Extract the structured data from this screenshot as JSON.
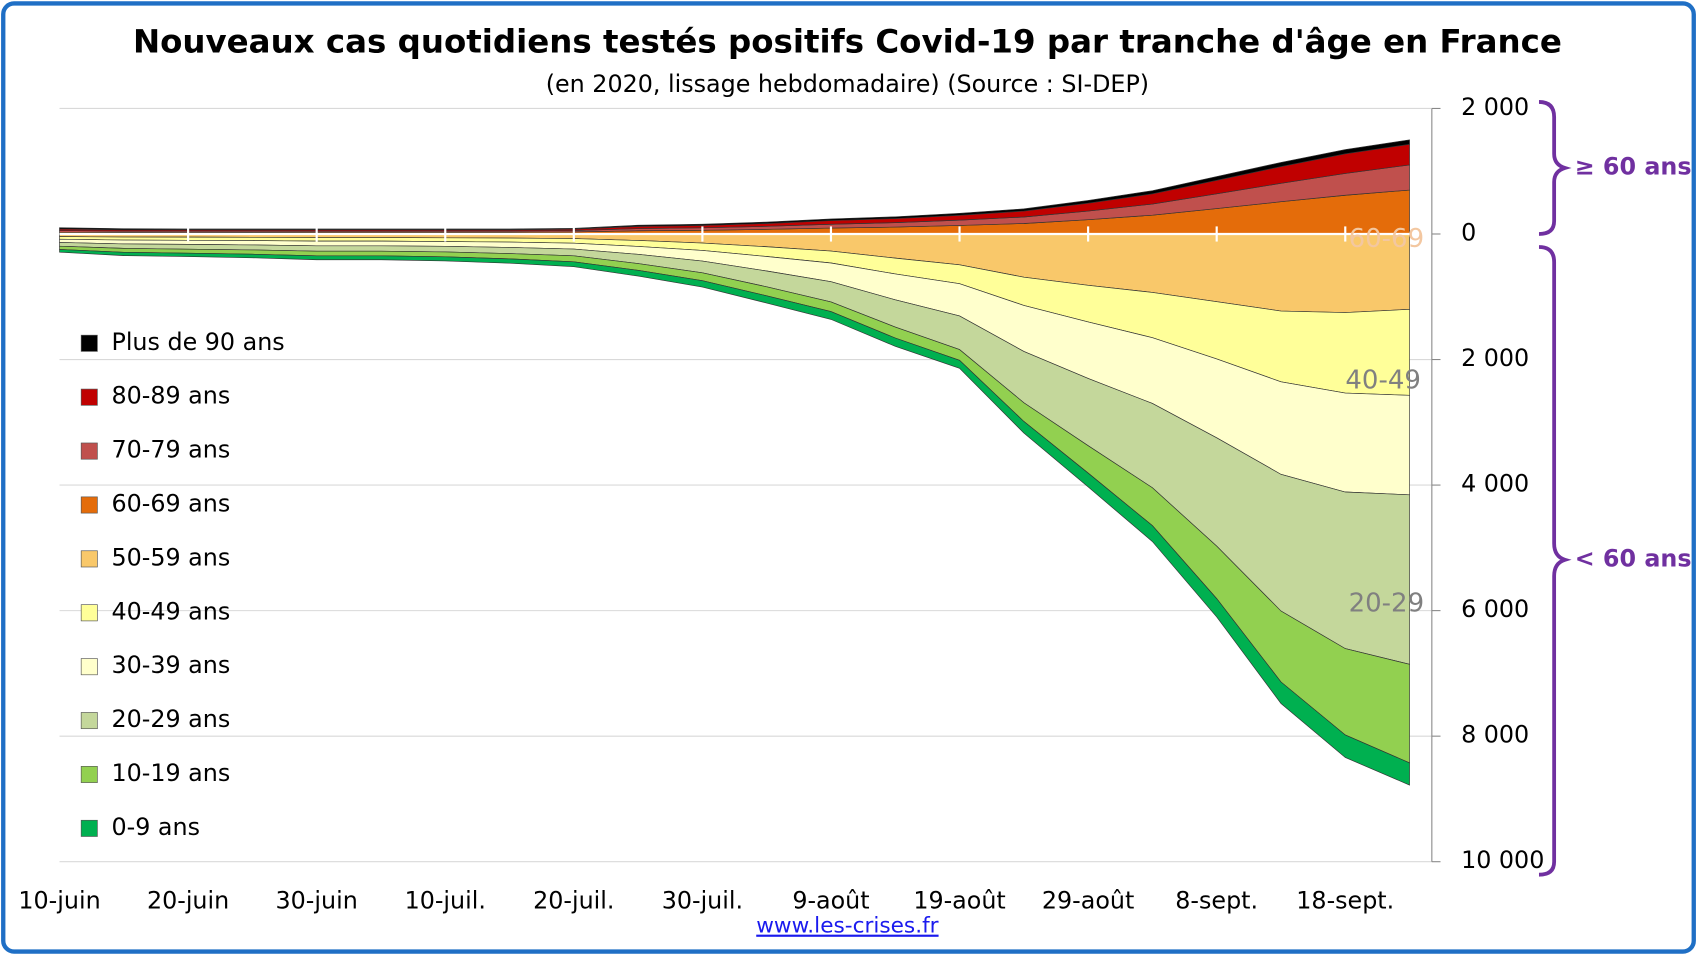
{
  "chart_data": {
    "type": "butterfly-stacked-area",
    "title": "Nouveaux cas quotidiens testés positifs Covid-19 par tranche d'âge en France",
    "subtitle": "(en 2020, lissage hebdomadaire) (Source : SI-DEP)",
    "source": "www.les-crises.fr",
    "categories": [
      "10-juin",
      null,
      "20-juin",
      null,
      "30-juin",
      null,
      "10-juil.",
      null,
      "20-juil.",
      null,
      "30-juil.",
      null,
      "9-août",
      null,
      "19-août",
      null,
      "29-août",
      null,
      "8-sept.",
      null,
      "18-sept.",
      null
    ],
    "ylim": [
      0,
      2000
    ],
    "yticks": [
      0,
      {
        "value": 2000,
        "label": "2 000"
      }
    ],
    "y2lim": [
      0,
      10000
    ],
    "y2ticks": [
      {
        "value": 2000,
        "label": "2 000"
      },
      {
        "value": 4000,
        "label": "4 000"
      },
      {
        "value": 6000,
        "label": "6 000"
      },
      {
        "value": 8000,
        "label": "8 000"
      },
      {
        "value": 10000,
        "label": "10 000"
      }
    ],
    "grid": true,
    "legend": "left",
    "series": [
      {
        "name": "Plus de 90 ans",
        "color": "#000000",
        "axis": "y",
        "values": [
          20,
          17,
          15,
          14,
          13,
          13,
          12,
          12,
          12,
          19,
          19,
          22,
          26,
          28,
          31,
          35,
          43,
          50,
          60,
          66,
          68,
          70
        ]
      },
      {
        "name": "80-89 ans",
        "color": "#c00000",
        "axis": "y",
        "values": [
          25,
          21,
          20,
          20,
          20,
          20,
          20,
          20,
          22,
          34,
          38,
          46,
          58,
          66,
          79,
          95,
          127,
          163,
          215,
          267,
          314,
          330
        ]
      },
      {
        "name": "70-79 ans",
        "color": "#c0504d",
        "axis": "y",
        "values": [
          25,
          21,
          20,
          20,
          20,
          20,
          20,
          20,
          23,
          35,
          39,
          48,
          61,
          70,
          84,
          102,
          137,
          177,
          235,
          293,
          346,
          400
        ]
      },
      {
        "name": "60-69 ans",
        "color": "#e46c0a",
        "axis": "y",
        "values": [
          30,
          26,
          25,
          26,
          27,
          27,
          28,
          28,
          33,
          52,
          59,
          74,
          95,
          111,
          136,
          168,
          228,
          300,
          405,
          514,
          617,
          700
        ]
      },
      {
        "name": "50-59 ans",
        "color": "#f9c86a",
        "axis": "y2",
        "values": [
          41,
          48,
          50,
          53,
          57,
          57,
          60,
          65,
          73,
          104,
          144,
          204,
          272,
          385,
          492,
          688,
          818,
          931,
          1080,
          1227,
          1251,
          1200
        ]
      },
      {
        "name": "40-49 ans",
        "color": "#ffff99",
        "axis": "y2",
        "values": [
          41,
          48,
          50,
          53,
          57,
          57,
          60,
          65,
          73,
          94,
          118,
          154,
          190,
          251,
          300,
          450,
          584,
          720,
          909,
          1129,
          1284,
          1370
        ]
      },
      {
        "name": "30-39 ans",
        "color": "#ffffcc",
        "axis": "y2",
        "values": [
          52,
          62,
          65,
          68,
          74,
          74,
          77,
          84,
          94,
          127,
          169,
          231,
          299,
          412,
          514,
          732,
          899,
          1049,
          1257,
          1474,
          1576,
          1585
        ]
      },
      {
        "name": "20-29 ans",
        "color": "#c4d79b",
        "axis": "y2",
        "values": [
          61,
          72,
          76,
          80,
          86,
          86,
          90,
          98,
          109,
          145,
          188,
          253,
          322,
          435,
          535,
          818,
          1072,
          1343,
          1726,
          2177,
          2494,
          2700
        ]
      },
      {
        "name": "10-19 ans",
        "color": "#92d050",
        "axis": "y2",
        "values": [
          52,
          62,
          65,
          68,
          74,
          74,
          77,
          84,
          94,
          109,
          124,
          143,
          154,
          174,
          171,
          298,
          435,
          603,
          836,
          1130,
          1376,
          1570
        ]
      },
      {
        "name": "0-9 ans",
        "color": "#00b050",
        "axis": "y2",
        "values": [
          43,
          53,
          54,
          58,
          62,
          62,
          66,
          69,
          77,
          91,
          102,
          115,
          123,
          133,
          128,
          184,
          222,
          254,
          292,
          343,
          359,
          355
        ]
      }
    ],
    "annotations": [
      {
        "text": "≥ 60 ans"
      },
      {
        "text": "< 60 ans"
      },
      {
        "text": "60-69"
      },
      {
        "text": "40-49"
      },
      {
        "text": "20-29"
      }
    ]
  }
}
